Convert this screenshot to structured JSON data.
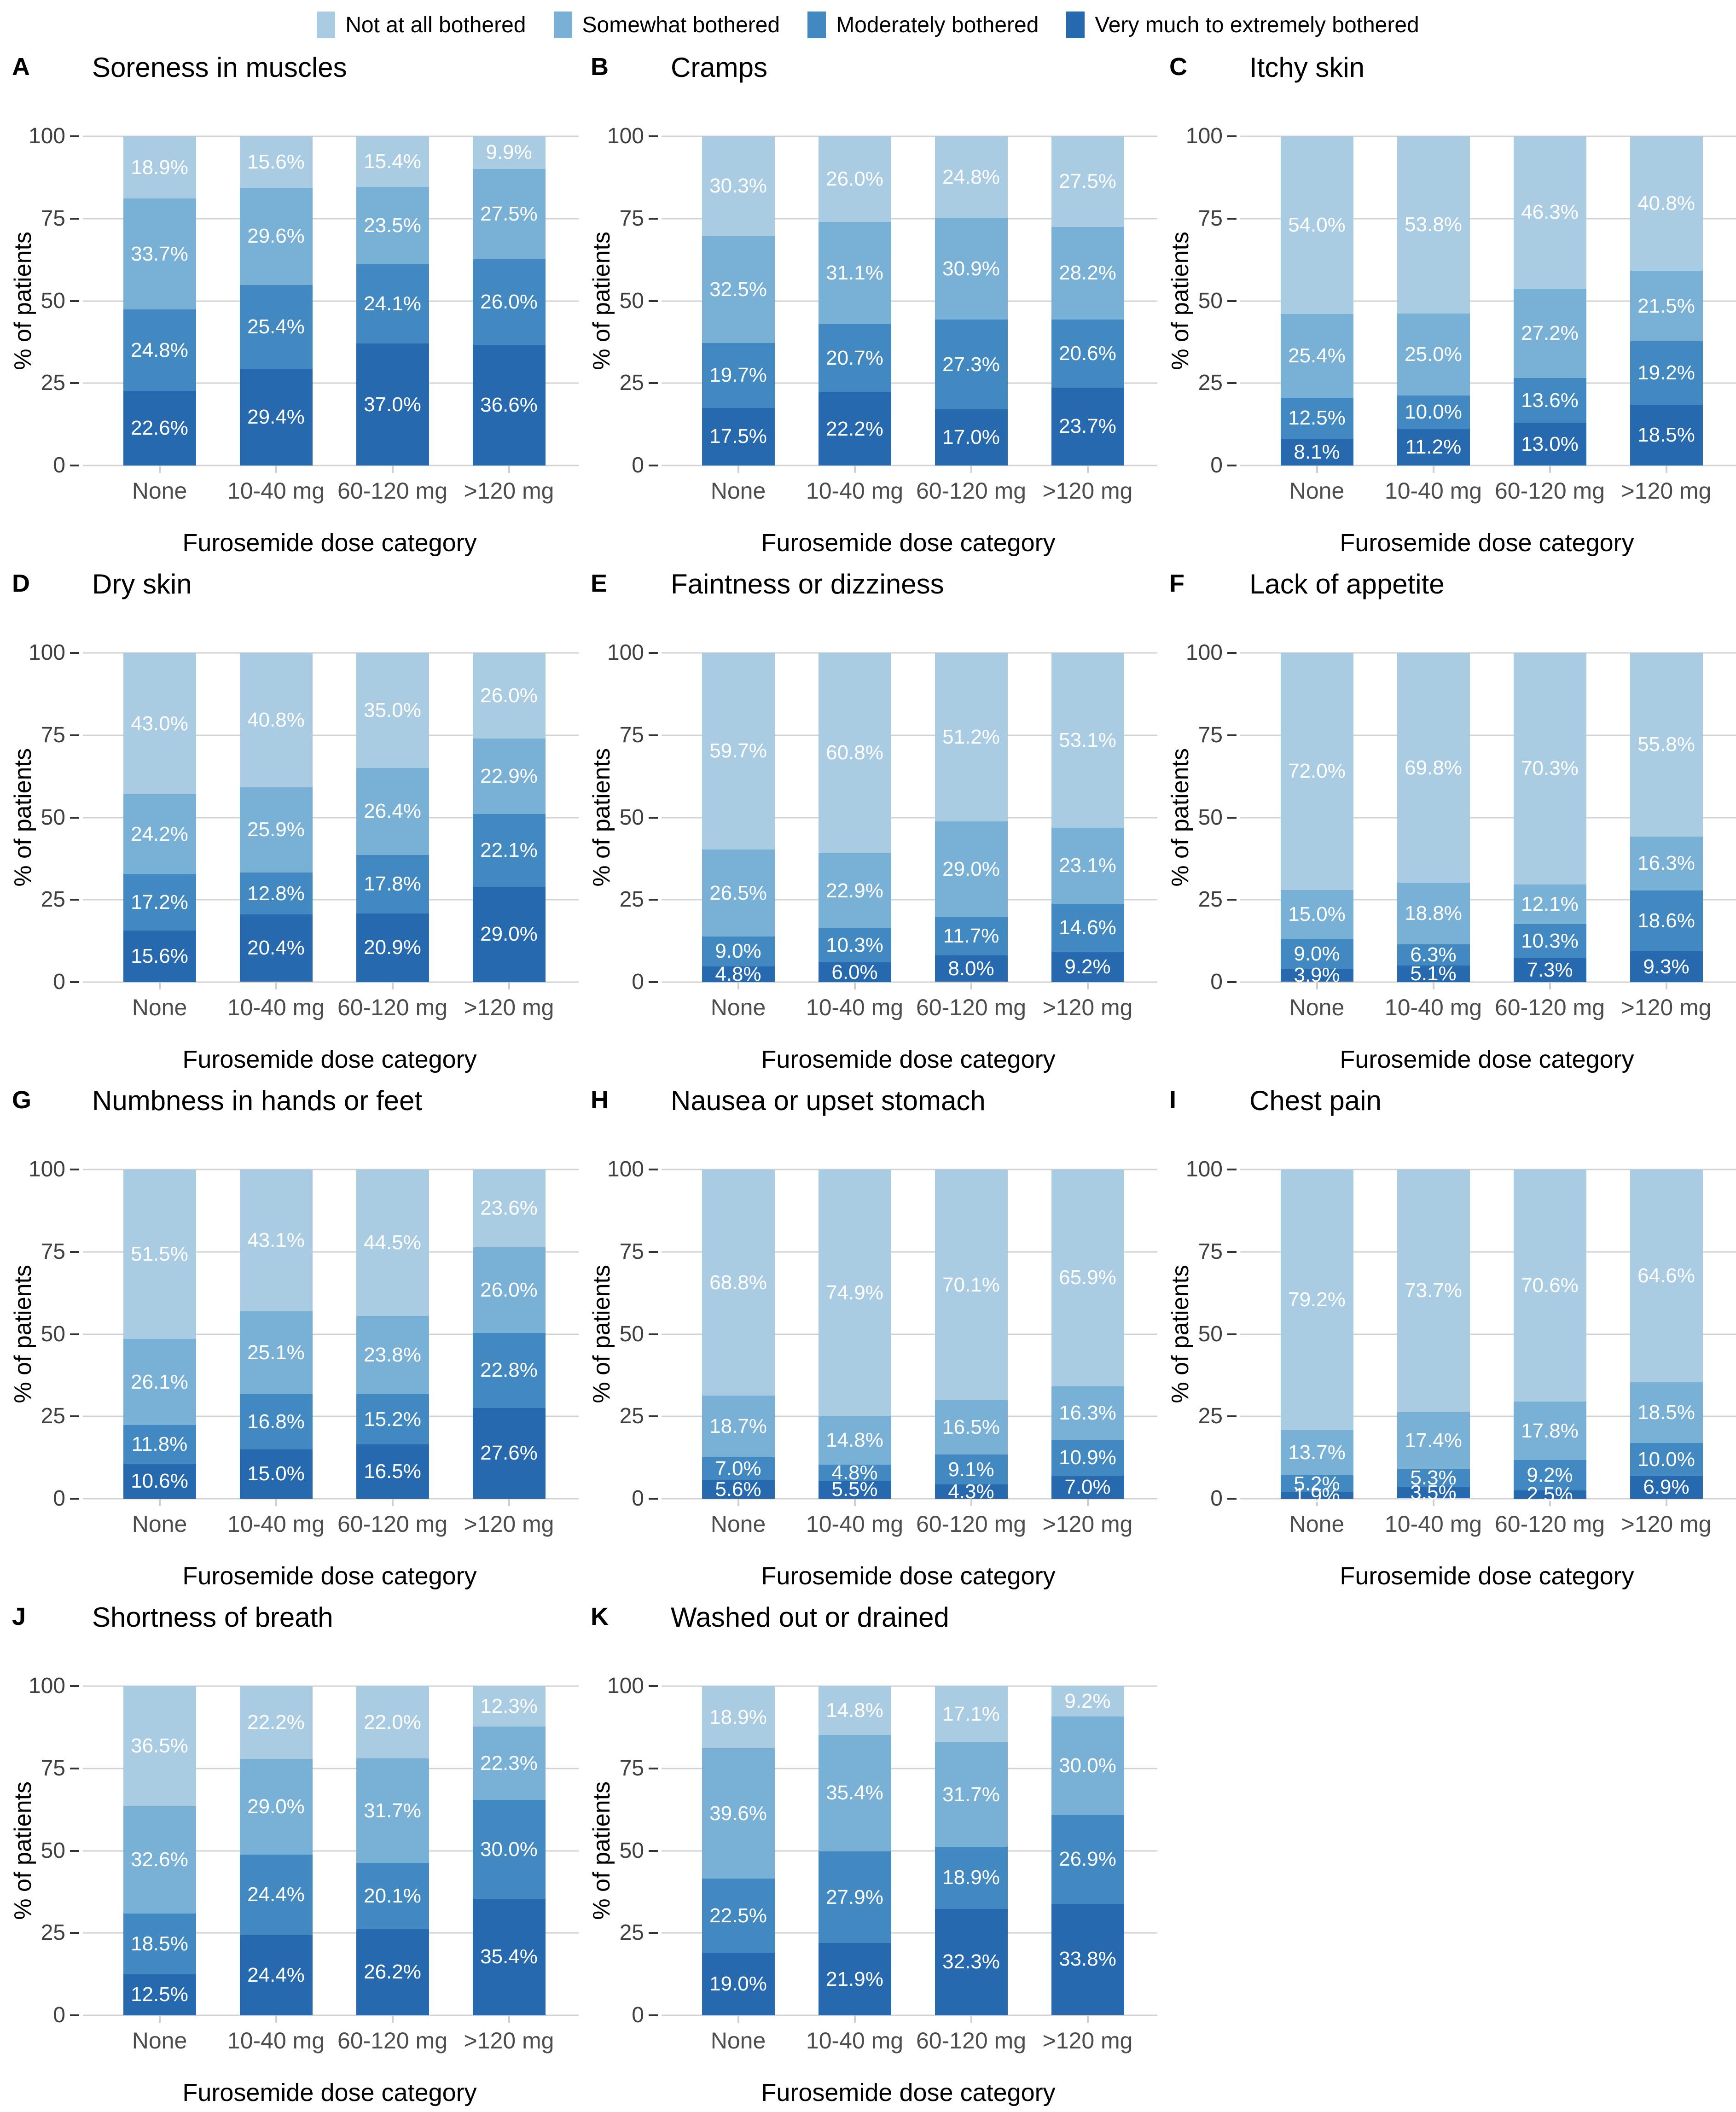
{
  "legend": {
    "position": "top",
    "items": [
      {
        "label": "Not at all bothered",
        "color": "#A9CCE2"
      },
      {
        "label": "Somewhat bothered",
        "color": "#79B0D6"
      },
      {
        "label": "Moderately bothered",
        "color": "#4289C1"
      },
      {
        "label": "Very much to extremely bothered",
        "color": "#2769AE"
      }
    ]
  },
  "styles": {
    "gridline_color": "#d2d2d2",
    "tick_mark_color": "#333333",
    "tick_label_color": "#404040",
    "bar_label_color": "#ffffff",
    "background": "#ffffff"
  },
  "chart_data": {
    "type": "stacked_bar_grid",
    "grid": "3 columns x 4 rows, panels A-K",
    "ylabel": "% of patients",
    "xlabel": "Furosemide dose category",
    "ylim": [
      0,
      100
    ],
    "yticks": [
      0,
      25,
      50,
      75,
      100
    ],
    "gridlines": "horizontal",
    "legend_position": "top",
    "categories": [
      "None",
      "10-40 mg",
      "60-120 mg",
      ">120 mg"
    ],
    "series_names": [
      "Not at all bothered",
      "Somewhat bothered",
      "Moderately bothered",
      "Very much to extremely bothered"
    ],
    "stack_order": "Very much at bottom, Not at all at top; series arrays below are in legend order (top segment first)",
    "value_format": "percent_one_decimal",
    "panels": [
      {
        "panel": "A",
        "title": "Soreness in muscles",
        "series": [
          [
            18.9,
            15.6,
            15.4,
            9.9
          ],
          [
            33.7,
            29.6,
            23.5,
            27.5
          ],
          [
            24.8,
            25.4,
            24.1,
            26.0
          ],
          [
            22.6,
            29.4,
            37.0,
            36.6
          ]
        ]
      },
      {
        "panel": "B",
        "title": "Cramps",
        "series": [
          [
            30.3,
            26.0,
            24.8,
            27.5
          ],
          [
            32.5,
            31.1,
            30.9,
            28.2
          ],
          [
            19.7,
            20.7,
            27.3,
            20.6
          ],
          [
            17.5,
            22.2,
            17.0,
            23.7
          ]
        ]
      },
      {
        "panel": "C",
        "title": "Itchy skin",
        "series": [
          [
            54.0,
            53.8,
            46.3,
            40.8
          ],
          [
            25.4,
            25.0,
            27.2,
            21.5
          ],
          [
            12.5,
            10.0,
            13.6,
            19.2
          ],
          [
            8.1,
            11.2,
            13.0,
            18.5
          ]
        ]
      },
      {
        "panel": "D",
        "title": "Dry skin",
        "series": [
          [
            43.0,
            40.8,
            35.0,
            26.0
          ],
          [
            24.2,
            25.9,
            26.4,
            22.9
          ],
          [
            17.2,
            12.8,
            17.8,
            22.1
          ],
          [
            15.6,
            20.4,
            20.9,
            29.0
          ]
        ]
      },
      {
        "panel": "E",
        "title": "Faintness or dizziness",
        "series": [
          [
            59.7,
            60.8,
            51.2,
            53.1
          ],
          [
            26.5,
            22.9,
            29.0,
            23.1
          ],
          [
            9.0,
            10.3,
            11.7,
            14.6
          ],
          [
            4.8,
            6.0,
            8.0,
            9.2
          ]
        ]
      },
      {
        "panel": "F",
        "title": "Lack of appetite",
        "series": [
          [
            72.0,
            69.8,
            70.3,
            55.8
          ],
          [
            15.0,
            18.8,
            12.1,
            16.3
          ],
          [
            9.0,
            6.3,
            10.3,
            18.6
          ],
          [
            3.9,
            5.1,
            7.3,
            9.3
          ]
        ]
      },
      {
        "panel": "G",
        "title": "Numbness in hands or feet",
        "series": [
          [
            51.5,
            43.1,
            44.5,
            23.6
          ],
          [
            26.1,
            25.1,
            23.8,
            26.0
          ],
          [
            11.8,
            16.8,
            15.2,
            22.8
          ],
          [
            10.6,
            15.0,
            16.5,
            27.6
          ]
        ]
      },
      {
        "panel": "H",
        "title": "Nausea or upset stomach",
        "series": [
          [
            68.8,
            74.9,
            70.1,
            65.9
          ],
          [
            18.7,
            14.8,
            16.5,
            16.3
          ],
          [
            7.0,
            4.8,
            9.1,
            10.9
          ],
          [
            5.6,
            5.5,
            4.3,
            7.0
          ]
        ]
      },
      {
        "panel": "I",
        "title": "Chest pain",
        "series": [
          [
            79.2,
            73.7,
            70.6,
            64.6
          ],
          [
            13.7,
            17.4,
            17.8,
            18.5
          ],
          [
            5.2,
            5.3,
            9.2,
            10.0
          ],
          [
            1.9,
            3.5,
            2.5,
            6.9
          ]
        ]
      },
      {
        "panel": "J",
        "title": "Shortness of breath",
        "series": [
          [
            36.5,
            22.2,
            22.0,
            12.3
          ],
          [
            32.6,
            29.0,
            31.7,
            22.3
          ],
          [
            18.5,
            24.4,
            20.1,
            30.0
          ],
          [
            12.5,
            24.4,
            26.2,
            35.4
          ]
        ]
      },
      {
        "panel": "K",
        "title": "Washed out or drained",
        "series": [
          [
            18.9,
            14.8,
            17.1,
            9.2
          ],
          [
            39.6,
            35.4,
            31.7,
            30.0
          ],
          [
            22.5,
            27.9,
            18.9,
            26.9
          ],
          [
            19.0,
            21.9,
            32.3,
            33.8
          ]
        ]
      }
    ]
  }
}
